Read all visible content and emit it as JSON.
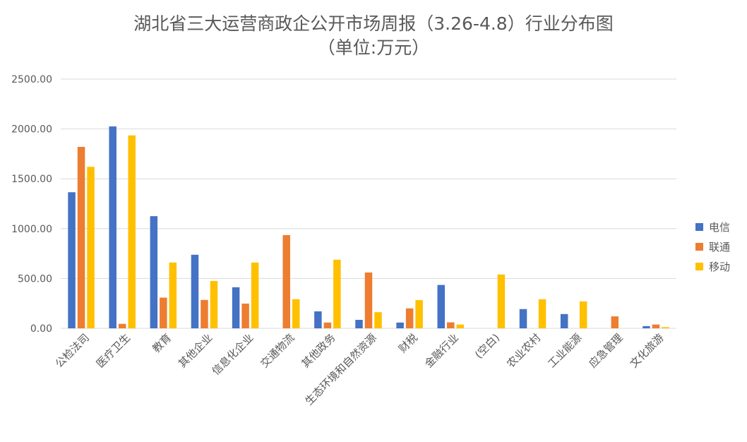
{
  "chart_data": {
    "type": "bar",
    "title": "湖北省三大运营商政企公开市场周报（3.26-4.8）行业分布图",
    "subtitle": "（单位:万元）",
    "ylim": [
      0,
      2500
    ],
    "yticks": [
      "0.00",
      "500.00",
      "1000.00",
      "1500.00",
      "2000.00",
      "2500.00"
    ],
    "grid": true,
    "legend_position": "right",
    "categories": [
      "公检法司",
      "医疗卫生",
      "教育",
      "其他企业",
      "信息化企业",
      "交通物流",
      "其他政务",
      "生态环境和自然资源",
      "财税",
      "金融行业",
      "(空白)",
      "农业农村",
      "工业能源",
      "应急管理",
      "文化旅游"
    ],
    "series": [
      {
        "name": "电信",
        "color": "#4472c4",
        "values": [
          1365,
          2025,
          1125,
          738,
          412,
          0,
          170,
          85,
          58,
          435,
          0,
          193,
          143,
          0,
          22
        ]
      },
      {
        "name": "联通",
        "color": "#ed7d31",
        "values": [
          1820,
          45,
          308,
          285,
          248,
          935,
          58,
          560,
          200,
          60,
          0,
          0,
          0,
          120,
          38
        ]
      },
      {
        "name": "移动",
        "color": "#ffc000",
        "values": [
          1620,
          1935,
          660,
          475,
          660,
          292,
          688,
          162,
          283,
          38,
          540,
          292,
          270,
          0,
          12
        ]
      }
    ]
  }
}
